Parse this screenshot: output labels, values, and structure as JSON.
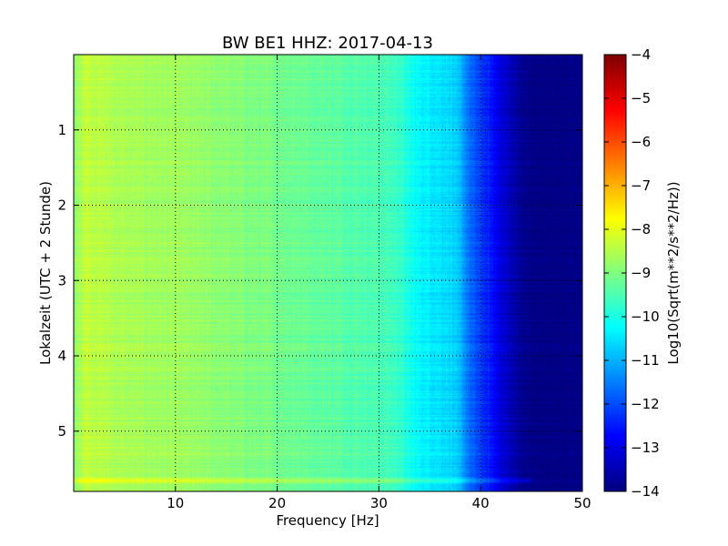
{
  "chart_data": {
    "type": "heatmap",
    "title": "BW BE1 HHZ: 2017-04-13",
    "xlabel": "Frequency [Hz]",
    "ylabel": "Lokalzeit (UTC + 2 Stunde)",
    "xlim": [
      0,
      50
    ],
    "ylim": [
      0,
      5.8
    ],
    "y_inverted": true,
    "x_ticks": [
      10,
      20,
      30,
      40,
      50
    ],
    "x_tick_labels": [
      "10",
      "20",
      "30",
      "40",
      "50"
    ],
    "y_ticks": [
      1,
      2,
      3,
      4,
      5
    ],
    "y_tick_labels": [
      "1",
      "2",
      "3",
      "4",
      "5"
    ],
    "grid": true,
    "colorbar": {
      "label": "Log10(Sqrt(m**2/s**2/Hz))",
      "range": [
        -14,
        -4
      ],
      "ticks": [
        -4,
        -5,
        -6,
        -7,
        -8,
        -9,
        -10,
        -11,
        -12,
        -13,
        -14
      ],
      "tick_labels": [
        "−4",
        "−5",
        "−6",
        "−7",
        "−8",
        "−9",
        "−10",
        "−11",
        "−12",
        "−13",
        "−14"
      ],
      "colormap": "jet"
    },
    "frequency_profile": {
      "frequency_hz": [
        0,
        1,
        2,
        5,
        10,
        15,
        20,
        25,
        30,
        32,
        33,
        34,
        35,
        37,
        38,
        39,
        40,
        41,
        42,
        43,
        44,
        45,
        50
      ],
      "log10_amplitude": [
        -8.9,
        -8.3,
        -8.4,
        -8.6,
        -8.7,
        -8.9,
        -9.1,
        -9.3,
        -9.5,
        -9.7,
        -10.1,
        -10.3,
        -10.4,
        -10.6,
        -11.0,
        -11.8,
        -12.2,
        -12.6,
        -13.1,
        -13.5,
        -13.8,
        -14.0,
        -14.0
      ]
    },
    "features": [
      {
        "time_h": 5.65,
        "log10_amplitude_offset": 0.6
      }
    ]
  }
}
